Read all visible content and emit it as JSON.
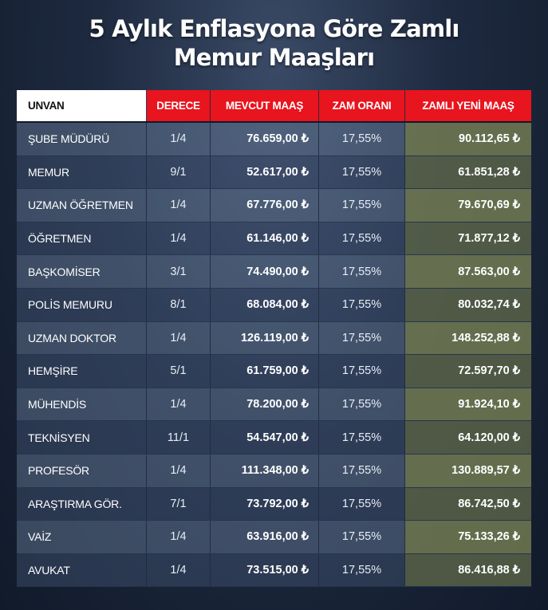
{
  "title": {
    "line1": "5 Aylık Enflasyona Göre Zamlı",
    "line2": "Memur Maaşları"
  },
  "columns": {
    "unvan": "UNVAN",
    "derece": "DERECE",
    "mevcut": "MEVCUT MAAŞ",
    "zam": "ZAM ORANI",
    "yeni": "ZAMLI YENİ MAAŞ"
  },
  "rows": [
    {
      "unvan": "ŞUBE MÜDÜRÜ",
      "derece": "1/4",
      "mevcut": "76.659,00 ₺",
      "zam": "17,55%",
      "yeni": "90.112,65 ₺"
    },
    {
      "unvan": "MEMUR",
      "derece": "9/1",
      "mevcut": "52.617,00 ₺",
      "zam": "17,55%",
      "yeni": "61.851,28 ₺"
    },
    {
      "unvan": "UZMAN ÖĞRETMEN",
      "derece": "1/4",
      "mevcut": "67.776,00 ₺",
      "zam": "17,55%",
      "yeni": "79.670,69 ₺"
    },
    {
      "unvan": "ÖĞRETMEN",
      "derece": "1/4",
      "mevcut": "61.146,00 ₺",
      "zam": "17,55%",
      "yeni": "71.877,12 ₺"
    },
    {
      "unvan": "BAŞKOMİSER",
      "derece": "3/1",
      "mevcut": "74.490,00 ₺",
      "zam": "17,55%",
      "yeni": "87.563,00 ₺"
    },
    {
      "unvan": "POLİS MEMURU",
      "derece": "8/1",
      "mevcut": "68.084,00 ₺",
      "zam": "17,55%",
      "yeni": "80.032,74 ₺"
    },
    {
      "unvan": "UZMAN DOKTOR",
      "derece": "1/4",
      "mevcut": "126.119,00 ₺",
      "zam": "17,55%",
      "yeni": "148.252,88 ₺"
    },
    {
      "unvan": "HEMŞİRE",
      "derece": "5/1",
      "mevcut": "61.759,00 ₺",
      "zam": "17,55%",
      "yeni": "72.597,70 ₺"
    },
    {
      "unvan": "MÜHENDİS",
      "derece": "1/4",
      "mevcut": "78.200,00 ₺",
      "zam": "17,55%",
      "yeni": "91.924,10 ₺"
    },
    {
      "unvan": "TEKNİSYEN",
      "derece": "11/1",
      "mevcut": "54.547,00 ₺",
      "zam": "17,55%",
      "yeni": "64.120,00 ₺"
    },
    {
      "unvan": "PROFESÖR",
      "derece": "1/4",
      "mevcut": "111.348,00 ₺",
      "zam": "17,55%",
      "yeni": "130.889,57 ₺"
    },
    {
      "unvan": "ARAŞTIRMA GÖR.",
      "derece": "7/1",
      "mevcut": "73.792,00 ₺",
      "zam": "17,55%",
      "yeni": "86.742,50 ₺"
    },
    {
      "unvan": "VAİZ",
      "derece": "1/4",
      "mevcut": "63.916,00 ₺",
      "zam": "17,55%",
      "yeni": "75.133,26 ₺"
    },
    {
      "unvan": "AVUKAT",
      "derece": "1/4",
      "mevcut": "73.515,00 ₺",
      "zam": "17,55%",
      "yeni": "86.416,88 ₺"
    }
  ],
  "colors": {
    "header_accent": "#e8141e",
    "background": "#1e2a40"
  }
}
